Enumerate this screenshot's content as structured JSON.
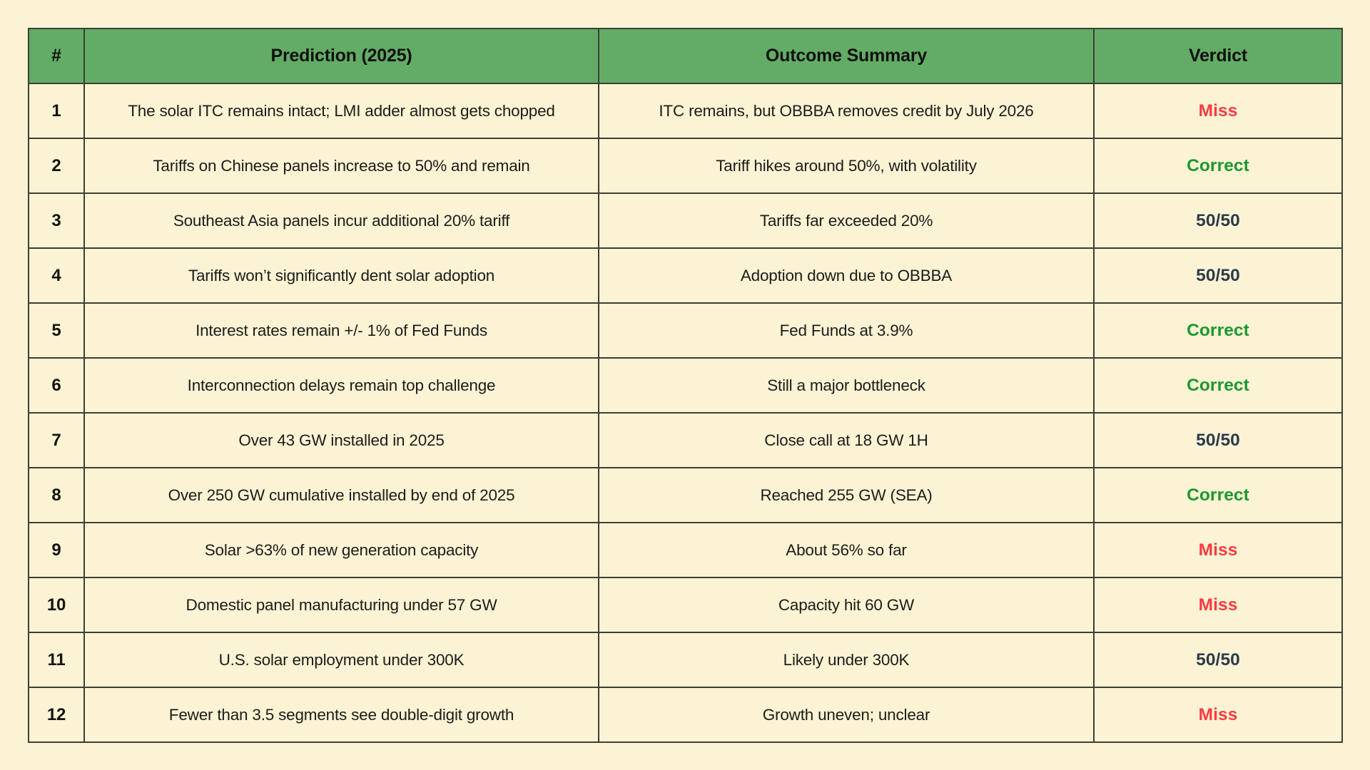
{
  "chart_data": {
    "type": "table",
    "columns": [
      "#",
      "Prediction (2025)",
      "Outcome Summary",
      "Verdict"
    ],
    "rows": [
      {
        "num": "1",
        "prediction": "The solar ITC remains intact; LMI adder almost gets chopped",
        "outcome": "ITC remains, but OBBBA removes credit by July 2026",
        "verdict": "Miss"
      },
      {
        "num": "2",
        "prediction": "Tariffs on Chinese panels increase to 50% and remain",
        "outcome": "Tariff hikes around 50%, with volatility",
        "verdict": "Correct"
      },
      {
        "num": "3",
        "prediction": "Southeast Asia panels incur additional 20% tariff",
        "outcome": "Tariffs far exceeded 20%",
        "verdict": "50/50"
      },
      {
        "num": "4",
        "prediction": "Tariffs won’t significantly dent solar adoption",
        "outcome": "Adoption down due to OBBBA",
        "verdict": "50/50"
      },
      {
        "num": "5",
        "prediction": "Interest rates remain +/- 1% of Fed Funds",
        "outcome": "Fed Funds at 3.9%",
        "verdict": "Correct"
      },
      {
        "num": "6",
        "prediction": "Interconnection delays remain top challenge",
        "outcome": "Still a major bottleneck",
        "verdict": "Correct"
      },
      {
        "num": "7",
        "prediction": "Over 43 GW installed in 2025",
        "outcome": "Close call at 18 GW 1H",
        "verdict": "50/50"
      },
      {
        "num": "8",
        "prediction": "Over 250 GW cumulative installed by end of 2025",
        "outcome": "Reached 255 GW (SEA)",
        "verdict": "Correct"
      },
      {
        "num": "9",
        "prediction": "Solar >63% of new generation capacity",
        "outcome": "About 56% so far",
        "verdict": "Miss"
      },
      {
        "num": "10",
        "prediction": "Domestic panel manufacturing under 57 GW",
        "outcome": "Capacity hit 60 GW",
        "verdict": "Miss"
      },
      {
        "num": "11",
        "prediction": "U.S. solar employment under 300K",
        "outcome": "Likely under 300K",
        "verdict": "50/50"
      },
      {
        "num": "12",
        "prediction": "Fewer than 3.5 segments see double-digit growth",
        "outcome": "Growth uneven; unclear",
        "verdict": "Miss"
      }
    ]
  },
  "styles": {
    "page_background": "#FBF3D4",
    "header_background": "#63AC66",
    "border_color": "#3E3E36",
    "body_text_color": "#1C1C1A",
    "verdict_colors": {
      "Correct": "#1E9730",
      "Miss": "#F93B42",
      "50/50": "#2C3B4B"
    }
  }
}
